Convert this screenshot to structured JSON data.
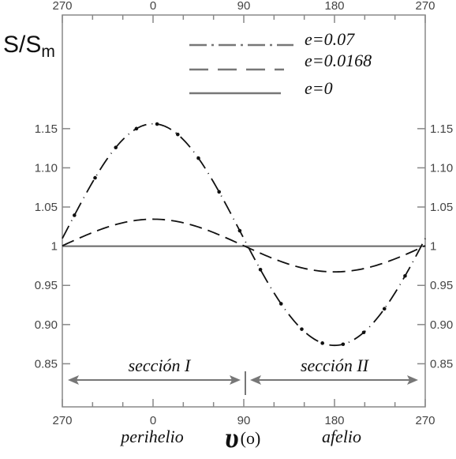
{
  "chart_data": {
    "type": "line",
    "ylabel_main": "S/S",
    "ylabel_sub": "m",
    "xlabel_main": "υ",
    "xlabel_unit": "(o)",
    "x_ticks_bottom": [
      "270",
      "0",
      "90",
      "180",
      "270"
    ],
    "x_ticks_top": [
      "270",
      "0",
      "90",
      "180",
      "270"
    ],
    "y_ticks": [
      "1.15",
      "1.10",
      "1.05",
      "1",
      "0.95",
      "0.90",
      "0.85"
    ],
    "y_tick_values": [
      1.15,
      1.1,
      1.05,
      1.0,
      0.95,
      0.9,
      0.85
    ],
    "ylim": [
      0.795,
      1.295
    ],
    "x_unrolled_range": [
      -90,
      270
    ],
    "legend": [
      {
        "label": "e=0.07",
        "style": "dash-dot"
      },
      {
        "label": "e=0.0168",
        "style": "dashed"
      },
      {
        "label": "e=0",
        "style": "solid"
      }
    ],
    "series": [
      {
        "e": 0.07,
        "style": "dash-dot",
        "color": "#111111"
      },
      {
        "e": 0.0168,
        "style": "dashed",
        "color": "#111111"
      },
      {
        "e": 0.0,
        "style": "solid",
        "color": "#666666"
      }
    ],
    "sections": [
      {
        "label": "sección I",
        "from": -90,
        "to": 90
      },
      {
        "label": "sección II",
        "from": 90,
        "to": 270
      }
    ],
    "annotations": {
      "perihelio": "perihelio",
      "afelio": "afelio"
    }
  }
}
